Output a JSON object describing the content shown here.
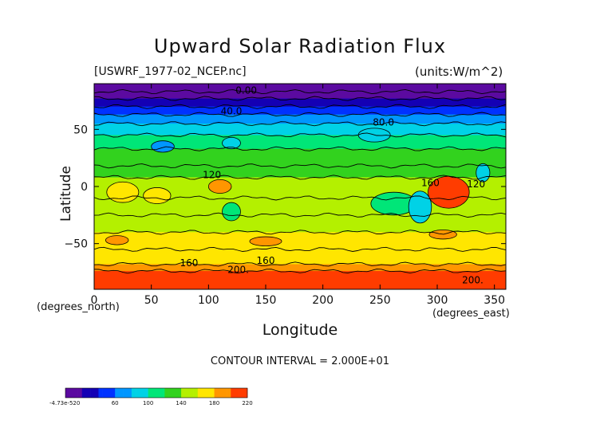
{
  "chart_data": {
    "type": "heatmap",
    "title": "Upward Solar Radiation Flux",
    "file_label": "[USWRF_1977-02_NCEP.nc]",
    "units_label": "(units:W/m^2)",
    "xlabel": "Longitude",
    "ylabel": "Latitude",
    "x_unit_label": "(degrees_east)",
    "y_unit_label": "(degrees_north)",
    "contour_interval_label": "CONTOUR INTERVAL = 2.000E+01",
    "xlim": [
      0,
      360
    ],
    "ylim": [
      -90,
      90
    ],
    "x_ticks": [
      0,
      50,
      100,
      150,
      200,
      250,
      300,
      350
    ],
    "x_tick_labels": [
      "0",
      "50",
      "100",
      "150",
      "200",
      "250",
      "300",
      "350"
    ],
    "y_ticks": [
      50,
      0,
      -50
    ],
    "y_tick_labels": [
      "50",
      "0",
      "−50"
    ],
    "colorbar": {
      "min_label": "-4.73e-520",
      "labels": [
        "60",
        "100",
        "140",
        "180",
        "220"
      ],
      "value_range": [
        0,
        220
      ],
      "label_values": [
        0,
        60,
        100,
        140,
        180,
        220
      ]
    },
    "zonal_bands": [
      {
        "lat_top": 90,
        "lat_bottom": 83,
        "value": 0
      },
      {
        "lat_top": 83,
        "lat_bottom": 77,
        "value": 15
      },
      {
        "lat_top": 77,
        "lat_bottom": 70,
        "value": 35
      },
      {
        "lat_top": 70,
        "lat_bottom": 63,
        "value": 55
      },
      {
        "lat_top": 63,
        "lat_bottom": 55,
        "value": 75
      },
      {
        "lat_top": 55,
        "lat_bottom": 45,
        "value": 95
      },
      {
        "lat_top": 45,
        "lat_bottom": 33,
        "value": 110
      },
      {
        "lat_top": 33,
        "lat_bottom": 18,
        "value": 120
      },
      {
        "lat_top": 18,
        "lat_bottom": 8,
        "value": 135
      },
      {
        "lat_top": 8,
        "lat_bottom": -10,
        "value": 150
      },
      {
        "lat_top": -10,
        "lat_bottom": -25,
        "value": 140
      },
      {
        "lat_top": -25,
        "lat_bottom": -40,
        "value": 145
      },
      {
        "lat_top": -40,
        "lat_bottom": -55,
        "value": 160
      },
      {
        "lat_top": -55,
        "lat_bottom": -68,
        "value": 170
      },
      {
        "lat_top": -68,
        "lat_bottom": -74,
        "value": 180
      },
      {
        "lat_top": -74,
        "lat_bottom": -90,
        "value": 215
      }
    ],
    "features": [
      {
        "lon": 25,
        "lat": -5,
        "rx": 14,
        "ry": 9,
        "value": 175
      },
      {
        "lon": 55,
        "lat": -8,
        "rx": 12,
        "ry": 7,
        "value": 175
      },
      {
        "lon": 110,
        "lat": 0,
        "rx": 10,
        "ry": 6,
        "value": 180
      },
      {
        "lon": 310,
        "lat": -5,
        "rx": 18,
        "ry": 14,
        "value": 205
      },
      {
        "lon": 262,
        "lat": -15,
        "rx": 20,
        "ry": 10,
        "value": 115
      },
      {
        "lon": 285,
        "lat": -18,
        "rx": 10,
        "ry": 14,
        "value": 95
      },
      {
        "lon": 120,
        "lat": -22,
        "rx": 8,
        "ry": 8,
        "value": 105
      },
      {
        "lon": 340,
        "lat": 12,
        "rx": 6,
        "ry": 8,
        "value": 95
      },
      {
        "lon": 60,
        "lat": 35,
        "rx": 10,
        "ry": 5,
        "value": 75
      },
      {
        "lon": 120,
        "lat": 38,
        "rx": 8,
        "ry": 5,
        "value": 80
      },
      {
        "lon": 245,
        "lat": 45,
        "rx": 14,
        "ry": 6,
        "value": 85
      },
      {
        "lon": 20,
        "lat": -47,
        "rx": 10,
        "ry": 4,
        "value": 185
      },
      {
        "lon": 150,
        "lat": -48,
        "rx": 14,
        "ry": 4,
        "value": 180
      },
      {
        "lon": 305,
        "lat": -42,
        "rx": 12,
        "ry": 4,
        "value": 185
      }
    ],
    "contour_labels": [
      {
        "text": "0.00",
        "lon": 133,
        "lat": 84
      },
      {
        "text": "40.0",
        "lon": 120,
        "lat": 66
      },
      {
        "text": "80.0",
        "lon": 253,
        "lat": 56
      },
      {
        "text": "120",
        "lon": 103,
        "lat": 10
      },
      {
        "text": "160",
        "lon": 294,
        "lat": 3
      },
      {
        "text": "120",
        "lon": 334,
        "lat": 2
      },
      {
        "text": "160",
        "lon": 83,
        "lat": -67
      },
      {
        "text": "160",
        "lon": 150,
        "lat": -65
      },
      {
        "text": "200.",
        "lon": 126,
        "lat": -73
      },
      {
        "text": "200.",
        "lon": 331,
        "lat": -82
      }
    ]
  }
}
